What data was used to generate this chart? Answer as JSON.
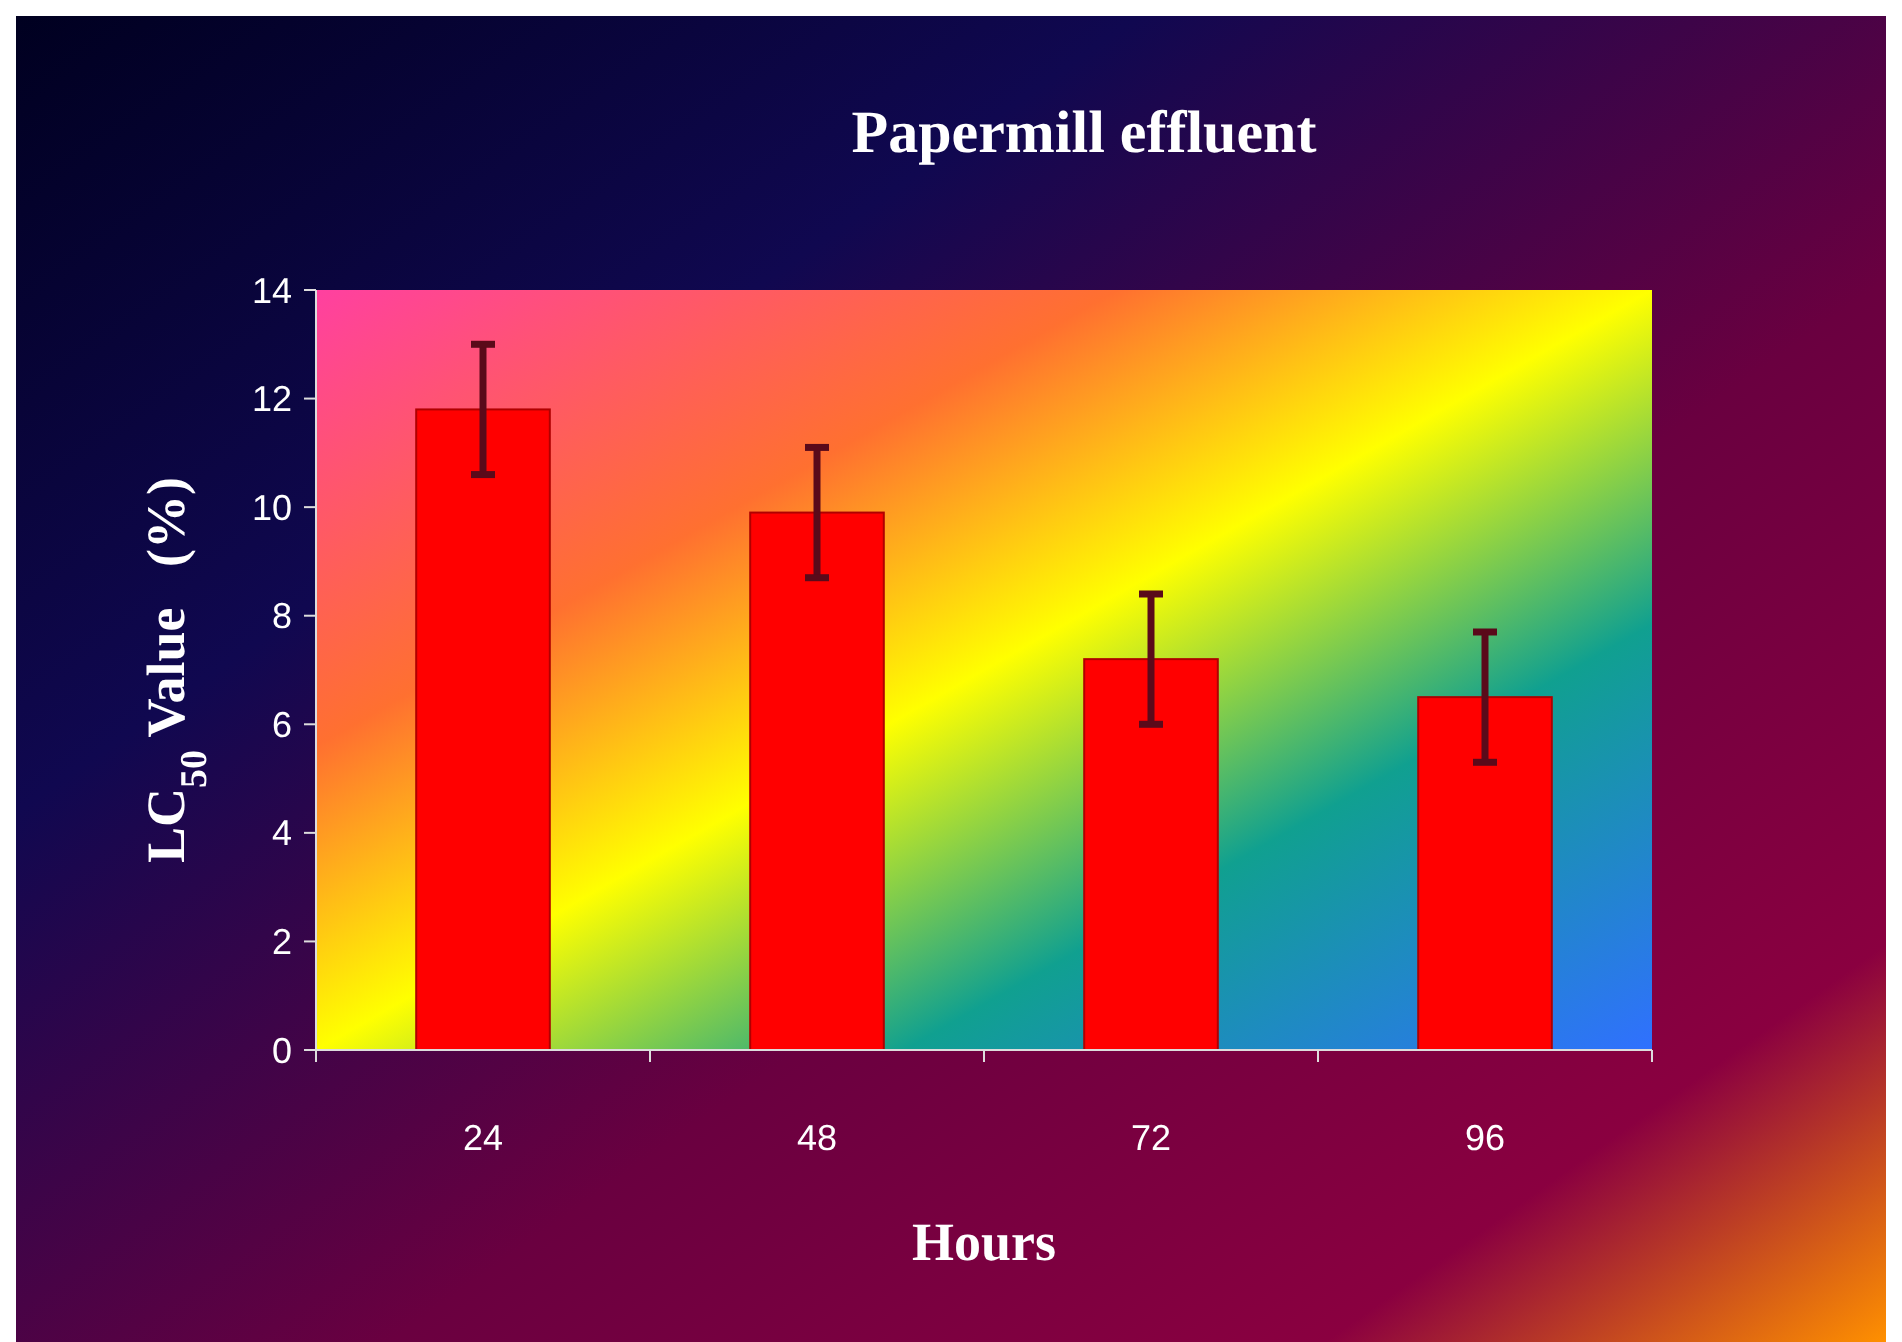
{
  "chart_data": {
    "type": "bar",
    "title": "Papermill effluent",
    "xlabel": "Hours",
    "ylabel": "LC$_{50}$ Value   (%)",
    "categories": [
      "24",
      "48",
      "72",
      "96"
    ],
    "values": [
      11.8,
      9.9,
      7.2,
      6.5
    ],
    "errors": [
      1.2,
      1.2,
      1.2,
      1.2
    ],
    "color": "#ff0000",
    "ylim": [
      0,
      14
    ],
    "yticks": [
      0,
      2,
      4,
      6,
      8,
      10,
      12,
      14
    ],
    "grid": false
  }
}
